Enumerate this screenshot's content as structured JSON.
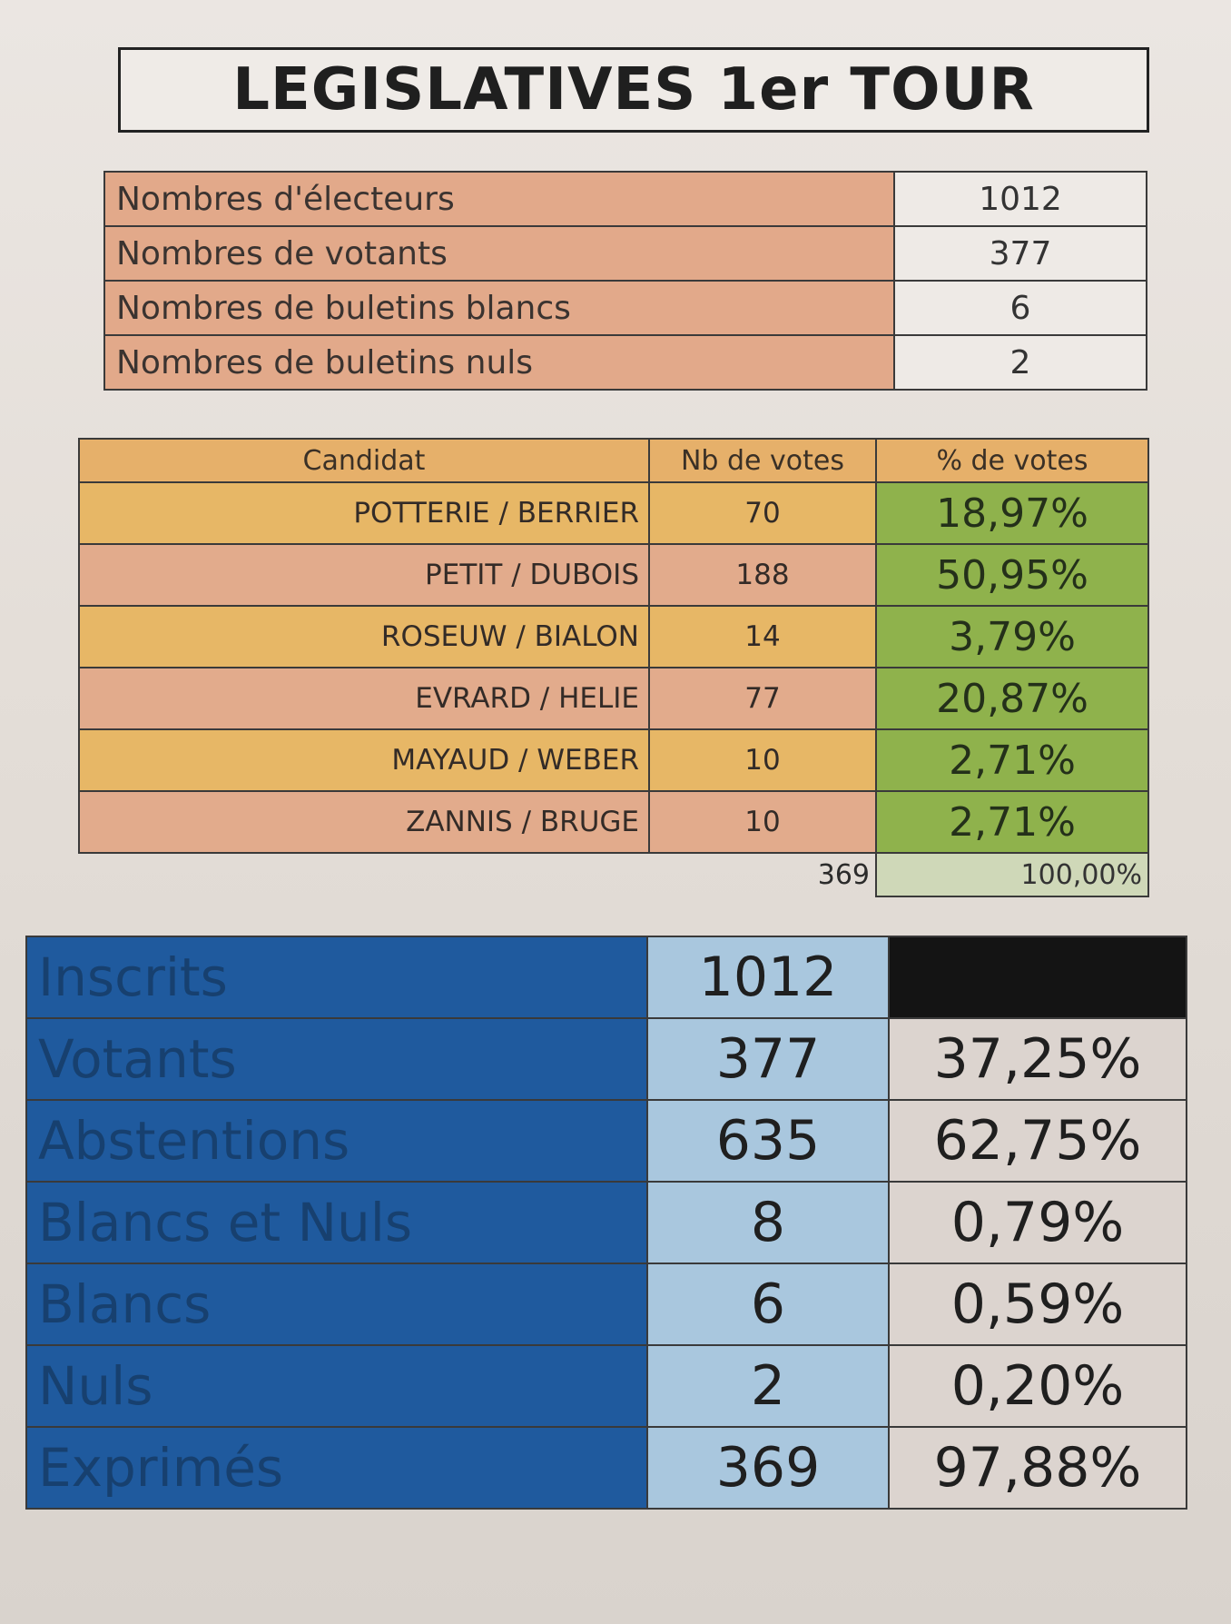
{
  "title": "LEGISLATIVES 1er TOUR",
  "counts": [
    {
      "label": "Nombres d'électeurs",
      "value": "1012"
    },
    {
      "label": "Nombres de votants",
      "value": "377"
    },
    {
      "label": "Nombres de buletins blancs",
      "value": "6"
    },
    {
      "label": "Nombres de buletins nuls",
      "value": "2"
    }
  ],
  "candidates_table": {
    "headers": [
      "Candidat",
      "Nb de votes",
      "% de votes"
    ],
    "rows": [
      {
        "name": "POTTERIE / BERRIER",
        "votes": "70",
        "percent": "18,97%"
      },
      {
        "name": "PETIT / DUBOIS",
        "votes": "188",
        "percent": "50,95%"
      },
      {
        "name": "ROSEUW / BIALON",
        "votes": "14",
        "percent": "3,79%"
      },
      {
        "name": "EVRARD / HELIE",
        "votes": "77",
        "percent": "20,87%"
      },
      {
        "name": "MAYAUD / WEBER",
        "votes": "10",
        "percent": "2,71%"
      },
      {
        "name": "ZANNIS / BRUGE",
        "votes": "10",
        "percent": "2,71%"
      }
    ],
    "total_votes": "369",
    "total_percent": "100,00%"
  },
  "summary": [
    {
      "label": "Inscrits",
      "value": "1012",
      "percent": ""
    },
    {
      "label": "Votants",
      "value": "377",
      "percent": "37,25%"
    },
    {
      "label": "Abstentions",
      "value": "635",
      "percent": "62,75%"
    },
    {
      "label": "Blancs et Nuls",
      "value": "8",
      "percent": "0,79%"
    },
    {
      "label": "Blancs",
      "value": "6",
      "percent": "0,59%"
    },
    {
      "label": "Nuls",
      "value": "2",
      "percent": "0,20%"
    },
    {
      "label": "Exprimés",
      "value": "369",
      "percent": "97,88%"
    }
  ],
  "colors": {
    "salmon": "#e2a98a",
    "yellow": "#e7b766",
    "green": "#8fb24c",
    "blue": "#1f5a9e",
    "light_blue": "#a9c7de"
  }
}
